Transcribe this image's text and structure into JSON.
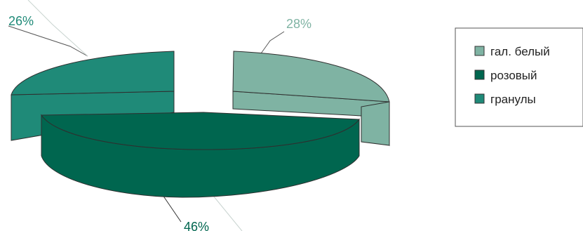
{
  "chart_data": {
    "type": "pie",
    "style": "3d-exploded",
    "slices": [
      {
        "label": "гал. белый",
        "value": 28,
        "display": "28%",
        "color": "#7fb3a3",
        "label_color": "#7fb3a3"
      },
      {
        "label": "розовый",
        "value": 46,
        "display": "46%",
        "color": "#00664f",
        "label_color": "#00664f"
      },
      {
        "label": "гранулы",
        "value": 26,
        "display": "26%",
        "color": "#1f8a78",
        "label_color": "#1f8a78"
      }
    ],
    "legend": {
      "placement": "right",
      "items": [
        "гал. белый",
        "розовый",
        "гранулы"
      ]
    }
  }
}
